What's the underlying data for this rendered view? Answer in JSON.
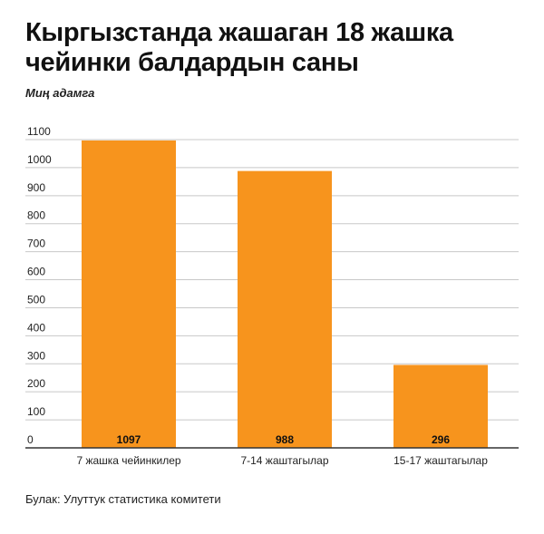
{
  "title": "Кыргызстанда жашаган 18 жашка чейинки балдардын саны",
  "subtitle": "Миң адамга",
  "source": "Булак: Улуттук статистика комитети",
  "colors": {
    "bar": "#f7941d",
    "grid": "#c8c8c8",
    "axis": "#333333",
    "text": "#222222"
  },
  "chart_data": {
    "type": "bar",
    "title": "Кыргызстанда жашаган 18 жашка чейинки балдардын саны",
    "ylabel": "Миң адамга",
    "xlabel": "",
    "categories": [
      "7 жашка чейинкилер",
      "7-14 жаштагылар",
      "15-17 жаштагылар"
    ],
    "values": [
      1097,
      988,
      296
    ],
    "data_labels": [
      "1097",
      "988",
      "296"
    ],
    "ylim": [
      0,
      1100
    ],
    "yticks": [
      0,
      100,
      200,
      300,
      400,
      500,
      600,
      700,
      800,
      900,
      1000,
      1100
    ],
    "ytick_labels": [
      "0",
      "100",
      "200",
      "300",
      "400",
      "500",
      "600",
      "700",
      "800",
      "900",
      "1000",
      "1100"
    ],
    "grid": true,
    "legend": "none"
  }
}
